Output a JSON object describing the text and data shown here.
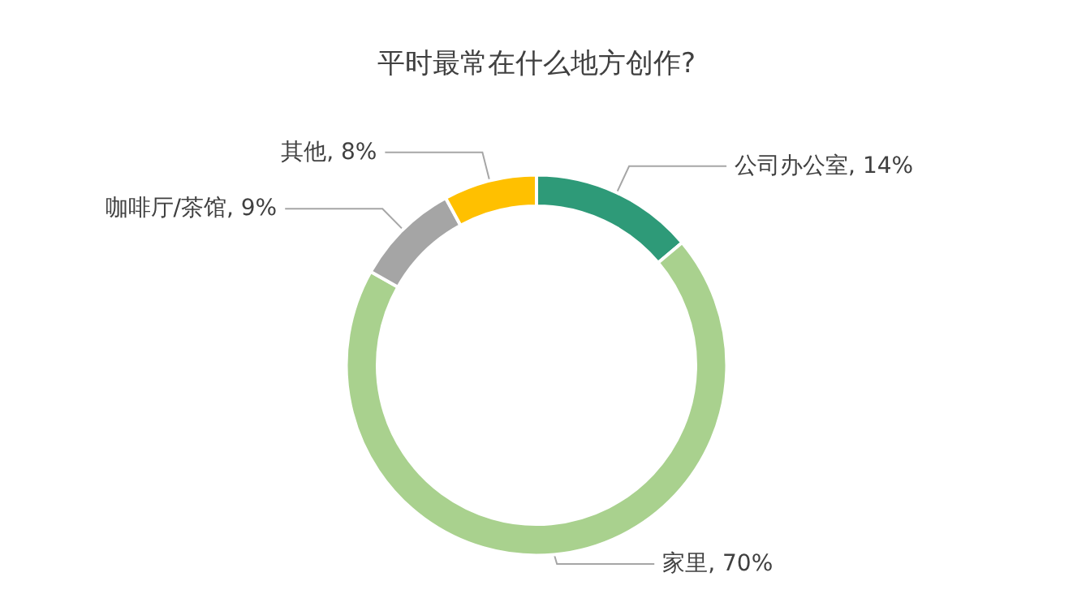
{
  "chart_data": {
    "type": "donut",
    "title": "平时最常在什么地方创作?",
    "categories": [
      "公司办公室",
      "家里",
      "咖啡厅/茶馆",
      "其他"
    ],
    "values": [
      14,
      70,
      9,
      8
    ],
    "value_labels": [
      "14%",
      "70%",
      "9%",
      "8%"
    ],
    "colors": [
      "#2e9a78",
      "#a9d18e",
      "#a5a5a5",
      "#ffc000"
    ],
    "legend": false
  }
}
